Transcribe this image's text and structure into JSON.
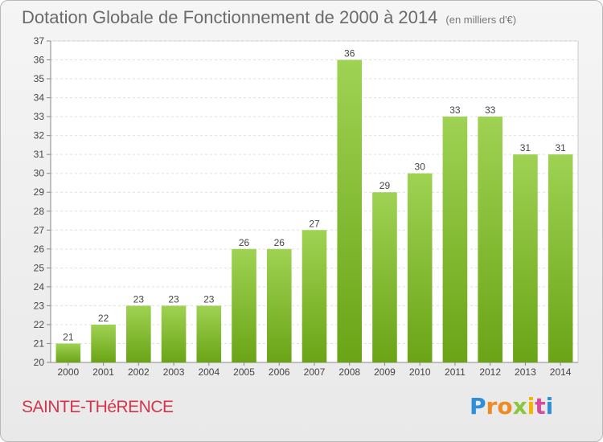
{
  "chart_data": {
    "type": "bar",
    "title": "Dotation Globale de Fonctionnement de 2000 à 2014",
    "subtitle": "(en milliers d'€)",
    "categories": [
      "2000",
      "2001",
      "2002",
      "2003",
      "2004",
      "2005",
      "2006",
      "2007",
      "2008",
      "2009",
      "2010",
      "2011",
      "2012",
      "2013",
      "2014"
    ],
    "values": [
      21,
      22,
      23,
      23,
      23,
      26,
      26,
      27,
      36,
      29,
      30,
      33,
      33,
      31,
      31
    ],
    "ylim": [
      20,
      37
    ],
    "yticks": [
      20,
      21,
      22,
      23,
      24,
      25,
      26,
      27,
      28,
      29,
      30,
      31,
      32,
      33,
      34,
      35,
      36,
      37
    ],
    "ytick_labels": [
      "20",
      "21",
      "22",
      "23",
      "24",
      "25",
      "26",
      "27",
      "28",
      "29",
      "30",
      "31",
      "32",
      "33",
      "34",
      "35",
      "36",
      "37"
    ],
    "grid": true,
    "bar_color_top": "#9fd253",
    "bar_color_bottom": "#6aa416"
  },
  "footer": {
    "town": "SAINTE-THéRENCE",
    "logo_letters": [
      "P",
      "r",
      "o",
      "x",
      "i",
      "t",
      "i"
    ],
    "logo_colors": [
      "#2f8fd8",
      "#f08a24",
      "#f08a24",
      "#8cc63f",
      "#f4b400",
      "#d84b9b",
      "#2f8fd8"
    ]
  }
}
